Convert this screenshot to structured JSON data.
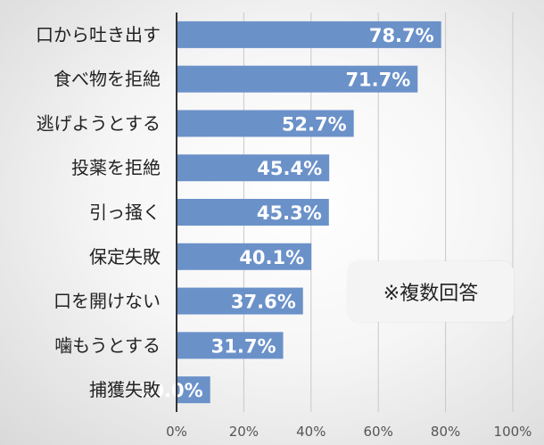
{
  "chart_data": {
    "type": "bar",
    "orientation": "horizontal",
    "categories": [
      "口から吐き出す",
      "食べ物を拒絶",
      "逃げようとする",
      "投薬を拒絶",
      "引っ掻く",
      "保定失敗",
      "口を開けない",
      "噛もうとする",
      "捕獲失敗"
    ],
    "values": [
      78.7,
      71.7,
      52.7,
      45.4,
      45.3,
      40.1,
      37.6,
      31.7,
      10.0
    ],
    "value_labels": [
      "78.7%",
      "71.7%",
      "52.7%",
      "45.4%",
      "45.3%",
      "40.1%",
      "37.6%",
      "31.7%",
      "10.0%"
    ],
    "xlim": [
      0,
      100
    ],
    "x_ticks": [
      "0%",
      "20%",
      "40%",
      "60%",
      "80%",
      "100%"
    ],
    "grid": true,
    "bar_color": "#6b91c9",
    "annotation": "※複数回答"
  }
}
